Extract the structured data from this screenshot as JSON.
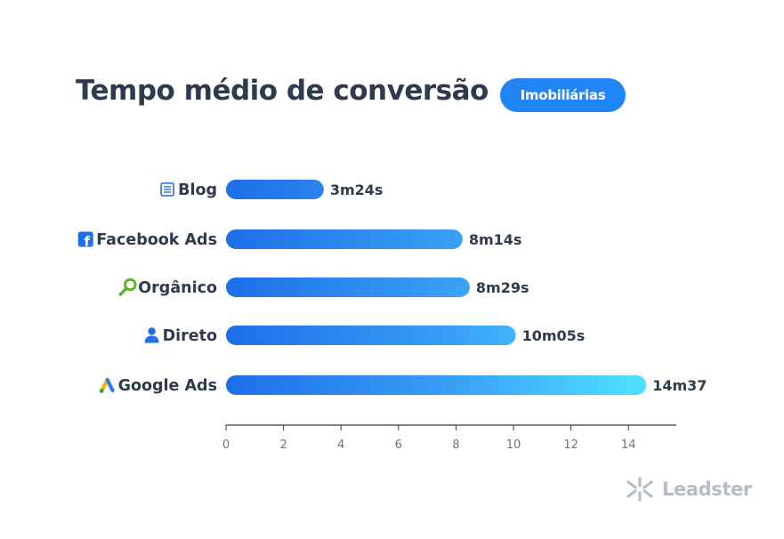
{
  "header": {
    "title": "Tempo médio de conversão",
    "badge": "Imobiliárias"
  },
  "chart_data": {
    "type": "bar",
    "orientation": "horizontal",
    "title": "Tempo médio de conversão",
    "categories": [
      "Blog",
      "Facebook Ads",
      "Orgânico",
      "Direto",
      "Google Ads"
    ],
    "icons": [
      "blog-icon",
      "facebook-icon",
      "organic-search-icon",
      "person-icon",
      "google-ads-icon"
    ],
    "values": [
      3.4,
      8.23,
      8.48,
      10.08,
      14.62
    ],
    "value_labels": [
      "3m24s",
      "8m14s",
      "8m29s",
      "10m05s",
      "14m37"
    ],
    "xticks": [
      0,
      2,
      4,
      6,
      8,
      10,
      12,
      14
    ],
    "xlim": [
      0,
      15.5
    ],
    "xlabel": "",
    "ylabel": "",
    "grid": false,
    "colors": {
      "bar_start": "#1e6fe8",
      "bar_mid": "#3aa0f7",
      "bar_end": "#4fe3ff",
      "text": "#2f3b4c",
      "axis": "#2f3b4c",
      "badge": "#2185f5"
    }
  },
  "brand": {
    "logo_text": "Leadster",
    "logo_icon": "leadster-logo-icon"
  }
}
